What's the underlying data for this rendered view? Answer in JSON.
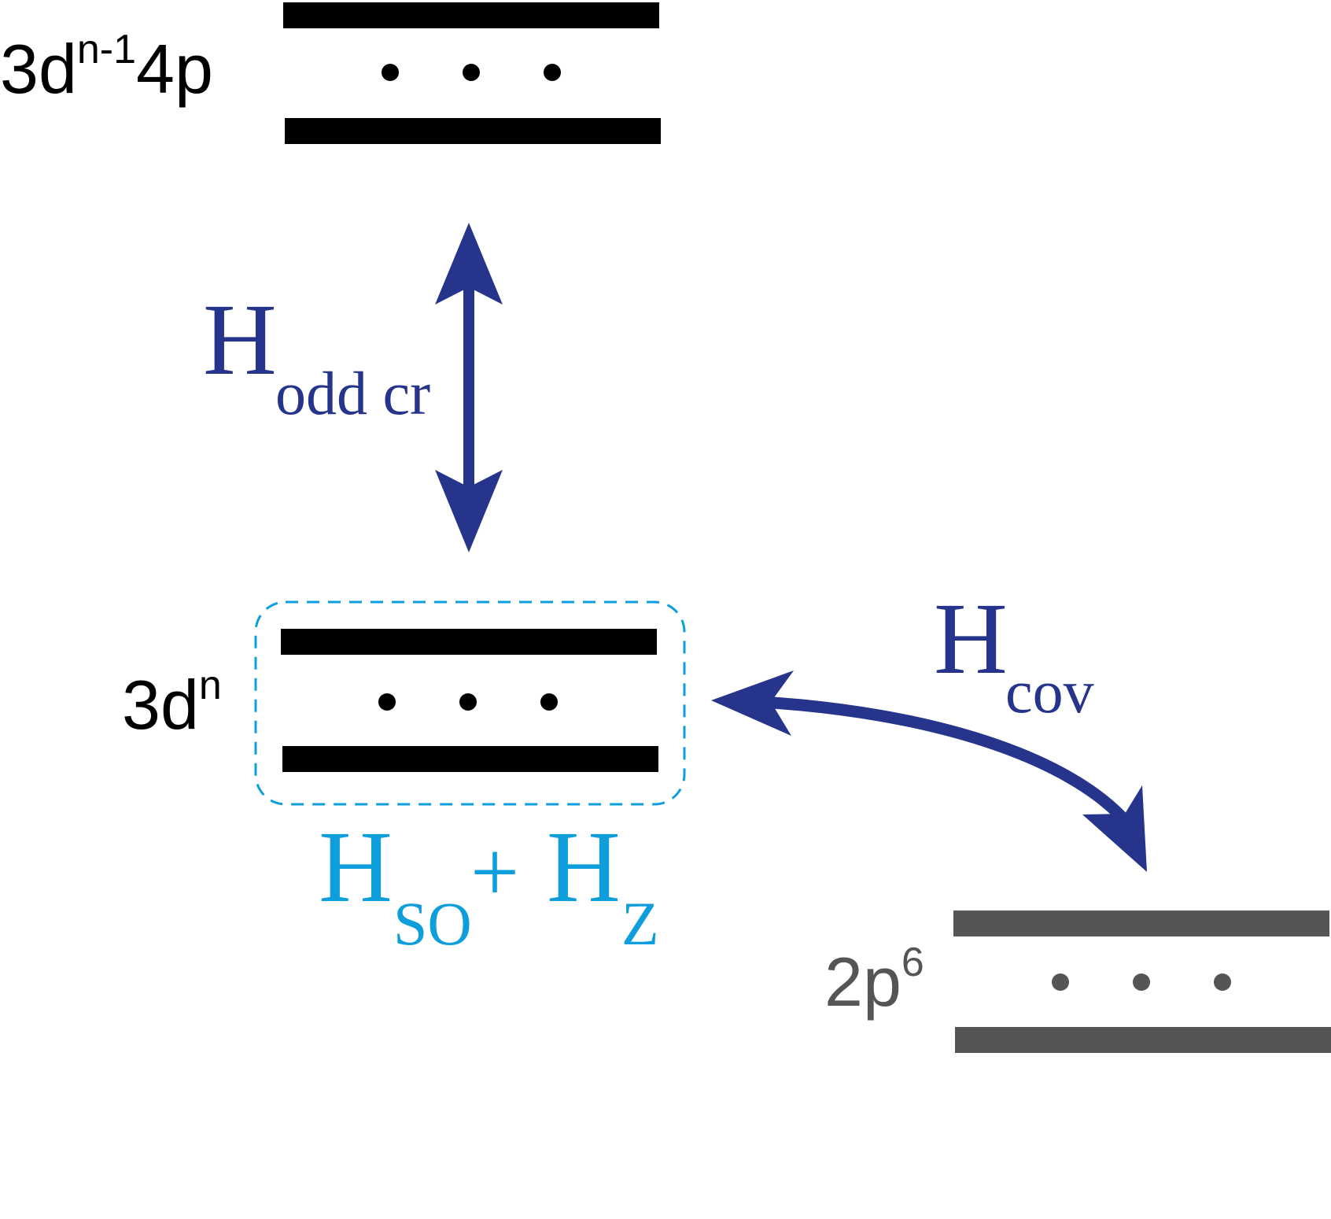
{
  "levels": {
    "upper": {
      "base": "3d",
      "sup": "n-1",
      "suffix": "4p"
    },
    "middle": {
      "base": "3d",
      "sup": "n"
    },
    "lower": {
      "base": "2p",
      "sup": "6"
    },
    "dots": "•  •  •"
  },
  "couplings": {
    "odd_cr": {
      "symbol": "H",
      "subscript": "odd cr"
    },
    "cov": {
      "symbol": "H",
      "subscript": "cov"
    },
    "so_z": {
      "symbol1": "H",
      "sub1": "SO",
      "plus": "+",
      "symbol2": "H",
      "sub2": "Z"
    }
  },
  "colors": {
    "level_black": "#000000",
    "level_gray": "#555555",
    "arrow_navy": "#27348b",
    "accent_cyan": "#0e9edb"
  }
}
